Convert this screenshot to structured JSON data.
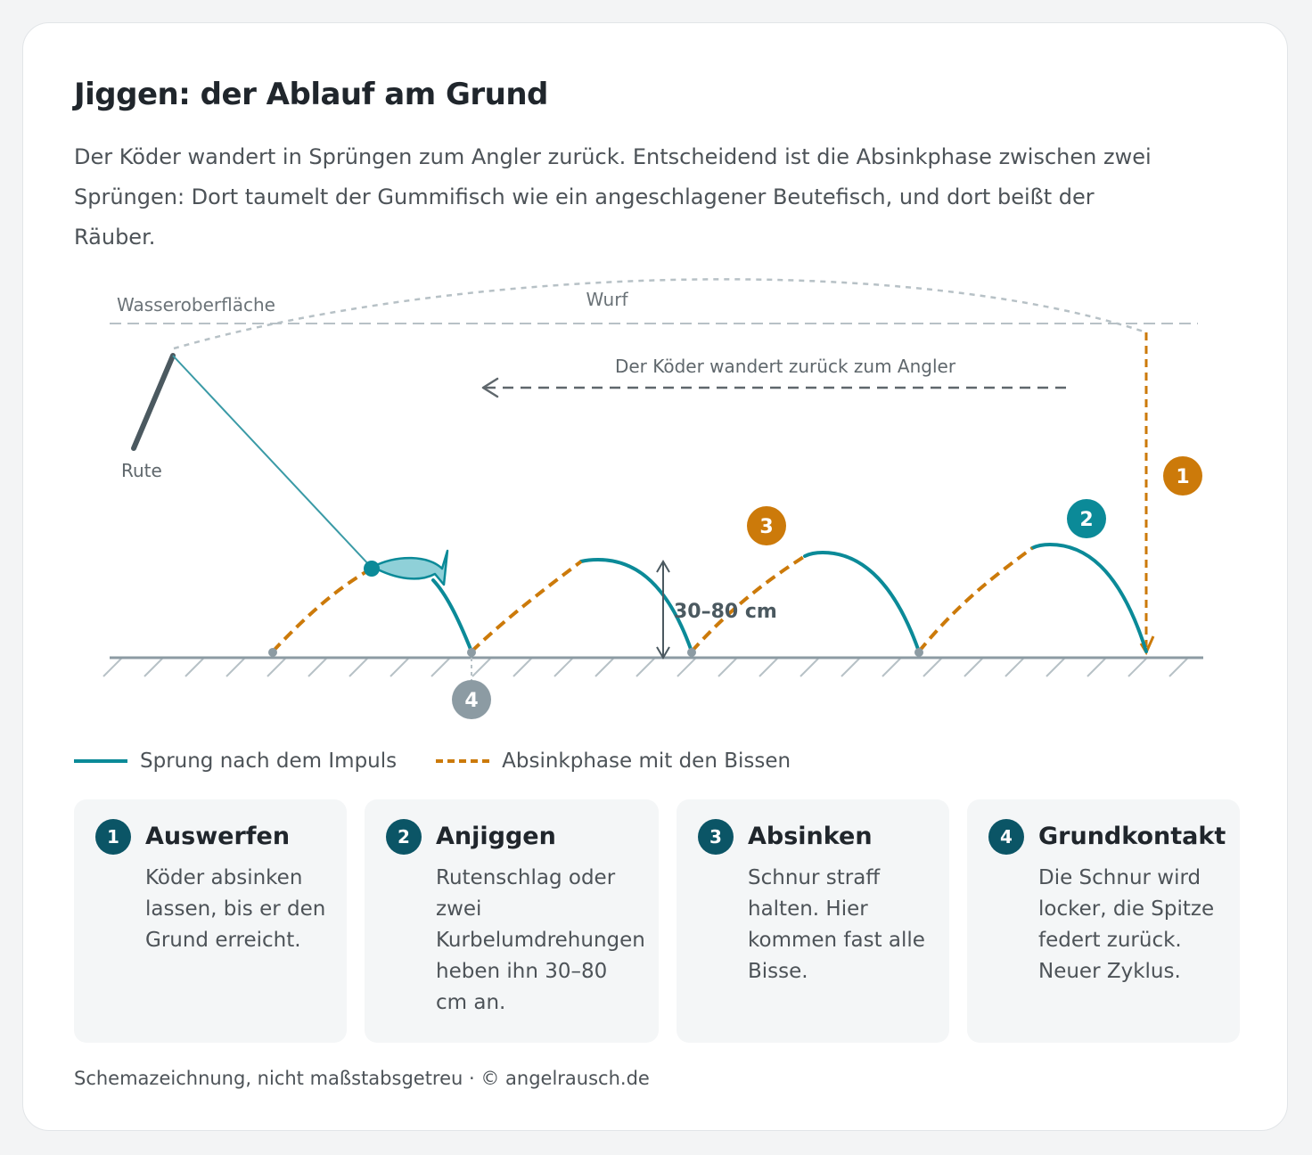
{
  "title": "Jiggen: der Ablauf am Grund",
  "lead": "Der Köder wandert in Sprüngen zum Angler zurück. Entscheidend ist die Absinkphase zwischen zwei Sprüngen: Dort taumelt der Gummifisch wie ein angeschlagener Beutefisch, und dort beißt der Räuber.",
  "diagram": {
    "surface_label": "Wasseroberfläche",
    "cast_label": "Wurf",
    "direction_label": "Der Köder wandert zurück zum Angler",
    "rod_label": "Rute",
    "height_label": "30–80 cm",
    "markers": [
      "1",
      "2",
      "3",
      "4"
    ]
  },
  "legend": {
    "jump": "Sprung nach dem Impuls",
    "sink": "Absinkphase mit den Bissen"
  },
  "steps": [
    {
      "number": "1",
      "title": "Auswerfen",
      "text": "Köder absinken lassen, bis er den Grund erreicht."
    },
    {
      "number": "2",
      "title": "Anjiggen",
      "text": "Rutenschlag oder zwei Kurbelumdrehungen heben ihn 30–80 cm an."
    },
    {
      "number": "3",
      "title": "Absinken",
      "text": "Schnur straff halten. Hier kommen fast alle Bisse."
    },
    {
      "number": "4",
      "title": "Grundkontakt",
      "text": "Die Schnur wird locker, die Spitze federt zurück. Neuer Zyklus."
    }
  ],
  "footnote": "Schemazeichnung, nicht maßstabsgetreu · © angelrausch.de",
  "colors": {
    "jump": "#0b8a98",
    "sink": "#cc7a0a",
    "step_badge": "#0b5566",
    "marker_grey": "#8c9ba3",
    "ground": "#8c9ba3"
  }
}
